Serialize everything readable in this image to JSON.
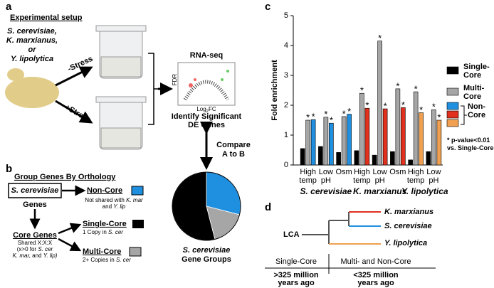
{
  "panel_a": {
    "label": "a",
    "title": "Experimental setup",
    "organisms": [
      "S. cerevisiae,",
      "K. marxianus,",
      "or",
      "Y. lipolytica"
    ],
    "minus_stress": "-Stress",
    "plus_stress": "+Stress",
    "method": "RNA-seq",
    "volcano_y": "FDR",
    "volcano_x": "Log",
    "volcano_x_sub": "2",
    "volcano_x_end": "FC",
    "step": [
      "Identify Significant",
      "DE Genes"
    ],
    "compare": [
      "Compare",
      "A to B"
    ]
  },
  "panel_b": {
    "label": "b",
    "title": "Group Genes By Orthology",
    "root": "S. cerevisiae",
    "root_sub": "Genes",
    "non_core": "Non-Core",
    "non_core_note": [
      "Not shared with",
      "K. mar",
      "and",
      "Y. lip"
    ],
    "core": "Core Genes",
    "core_note": [
      "Shared X:X:X",
      "(x>0 for",
      "S. cer",
      "K. mar,",
      "and",
      "Y. lip)"
    ],
    "single_core": "Single-Core",
    "single_note": [
      "1 Copy in",
      "S. cer"
    ],
    "multi_core": "Multi-Core",
    "multi_note": [
      "2+ Copies in",
      "S. cer"
    ]
  },
  "chart_data": [
    {
      "type": "bar",
      "ylabel": "Fold enrichment",
      "ylim": [
        0,
        5
      ],
      "yticks": [
        0,
        1,
        2,
        3,
        4,
        5
      ],
      "groups": [
        {
          "name": "S. cerevisiae",
          "color": "#1f8fe0",
          "categories": [
            "High temp",
            "Low pH",
            "Osm"
          ]
        },
        {
          "name": "K. marxianus",
          "color": "#e0301e",
          "categories": [
            "High temp",
            "Low pH",
            "Osm"
          ]
        },
        {
          "name": "Y. lipolytica",
          "color": "#f0a050",
          "categories": [
            "High temp",
            "Low pH"
          ]
        }
      ],
      "series": [
        {
          "name": "Single-Core",
          "color": "#000000",
          "values": [
            0.55,
            0.62,
            0.42,
            0.48,
            0.33,
            0.45,
            0.17,
            0.45
          ]
        },
        {
          "name": "Multi-Core",
          "color": "#a6a6a6",
          "values": [
            1.5,
            1.6,
            1.62,
            2.4,
            4.15,
            2.55,
            2.45,
            1.85
          ],
          "significant": [
            true,
            true,
            true,
            true,
            true,
            true,
            true,
            true
          ]
        },
        {
          "name": "Non-Core",
          "colors": [
            "#1f8fe0",
            "#1f8fe0",
            "#1f8fe0",
            "#e0301e",
            "#e0301e",
            "#e0301e",
            "#f0a050",
            "#f0a050"
          ],
          "values": [
            1.52,
            1.4,
            1.7,
            1.9,
            1.88,
            1.92,
            1.75,
            1.5
          ],
          "significant": [
            true,
            true,
            true,
            true,
            true,
            true,
            true,
            true
          ]
        }
      ],
      "significance_marker": "*",
      "note": "* p-value<0.01 vs. Single-Core"
    },
    {
      "type": "pie",
      "categories": [
        "Non-Core",
        "Multi-Core",
        "Single-Core"
      ],
      "values": [
        29,
        17,
        54
      ],
      "colors": [
        "#1f8fe0",
        "#a6a6a6",
        "#000000"
      ],
      "caption": [
        "S. cerevisiae",
        "Gene Groups"
      ]
    }
  ],
  "panel_d": {
    "label": "d",
    "root": "LCA",
    "leaves": [
      {
        "name": "K. marxianus",
        "color": "#e0301e"
      },
      {
        "name": "S. cerevisiae",
        "color": "#1f8fe0"
      },
      {
        "name": "Y. lipolytica",
        "color": "#f0a050"
      }
    ],
    "eras": [
      {
        "name": "Single-Core",
        "time": [
          ">325 million",
          "years ago"
        ]
      },
      {
        "name": "Multi- and Non-Core",
        "time": [
          "<325 million",
          "years ago"
        ]
      }
    ]
  }
}
